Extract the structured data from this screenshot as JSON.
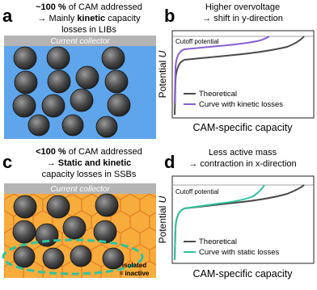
{
  "panel_a": {
    "letter": "a",
    "line1": [
      "~100 %",
      "of CAM addressed"
    ],
    "line2": [
      "→ Mainly",
      "kinetic",
      "capacity"
    ],
    "line3": "losses in LIBs",
    "collector": "Current collector"
  },
  "panel_b": {
    "letter": "b",
    "title": [
      "Higher overvoltage",
      "→ shift in y-direction"
    ],
    "cutoff": "Cutoff potential",
    "ylabel": [
      "Potential",
      "U"
    ],
    "xlabel": "CAM-specific capacity",
    "legend": [
      "Theoretical",
      "Curve with kinetic losses"
    ]
  },
  "panel_c": {
    "letter": "c",
    "line1": [
      "<100 %",
      "of CAM addressed"
    ],
    "line2": [
      "→",
      "Static and kinetic"
    ],
    "line3": "capacity losses in SSBs",
    "collector": "Current collector",
    "isolated": [
      "isolated",
      "= inactive"
    ]
  },
  "panel_d": {
    "letter": "d",
    "title": [
      "Less active mass",
      "→ contraction in x-direction"
    ],
    "cutoff": "Cutoff potential",
    "ylabel": [
      "Potential",
      "U"
    ],
    "xlabel": "CAM-specific capacity",
    "legend": [
      "Theoretical",
      "Curve with static losses"
    ]
  }
}
